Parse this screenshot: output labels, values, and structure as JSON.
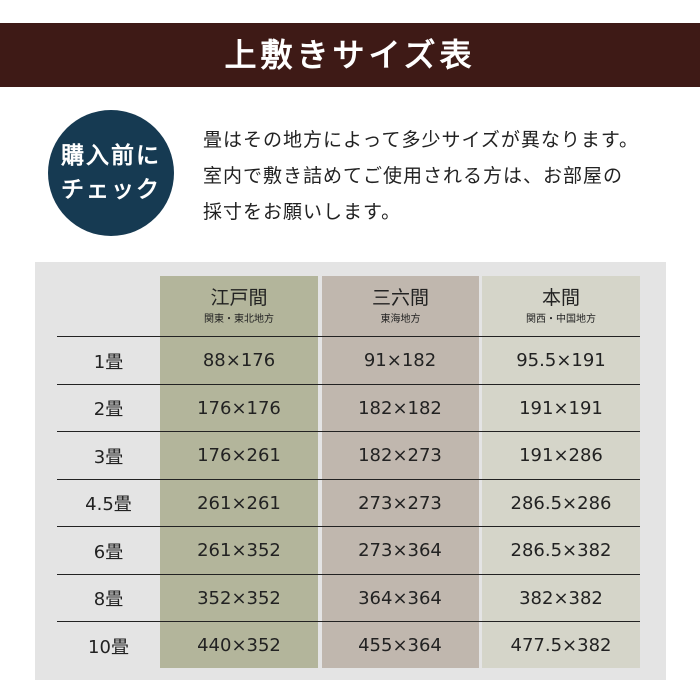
{
  "title": "上敷きサイズ表",
  "badge": {
    "line1": "購入前に",
    "line2": "チェック",
    "color": "#163a52"
  },
  "intro": [
    "畳はその地方によって多少サイズが異なります。",
    "室内で敷き詰めてご使用される方は、お部屋の",
    "採寸をお願いします。"
  ],
  "columns": [
    {
      "name": "江戸間",
      "region": "関東・東北地方",
      "color": "#b3b59b"
    },
    {
      "name": "三六間",
      "region": "東海地方",
      "color": "#c0b7ae"
    },
    {
      "name": "本間",
      "region": "関西・中国地方",
      "color": "#d5d5c9"
    }
  ],
  "rows": [
    {
      "label": "1畳",
      "values": [
        "88×176",
        "91×182",
        "95.5×191"
      ]
    },
    {
      "label": "2畳",
      "values": [
        "176×176",
        "182×182",
        "191×191"
      ]
    },
    {
      "label": "3畳",
      "values": [
        "176×261",
        "182×273",
        "191×286"
      ]
    },
    {
      "label": "4.5畳",
      "values": [
        "261×261",
        "273×273",
        "286.5×286"
      ]
    },
    {
      "label": "6畳",
      "values": [
        "261×352",
        "273×364",
        "286.5×382"
      ]
    },
    {
      "label": "8畳",
      "values": [
        "352×352",
        "364×364",
        "382×382"
      ]
    },
    {
      "label": "10畳",
      "values": [
        "440×352",
        "455×364",
        "477.5×382"
      ]
    }
  ]
}
